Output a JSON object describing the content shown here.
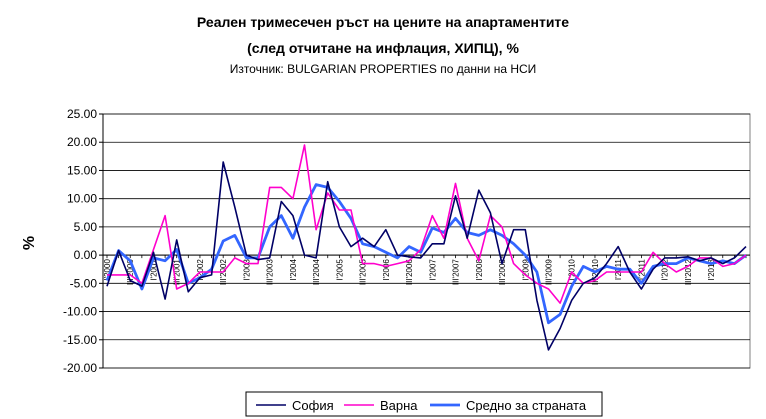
{
  "chart_data": {
    "type": "line",
    "title": "Реален тримесечен ръст на цените на апартаментите",
    "subtitle": "(след отчитане на инфлация, ХИПЦ), %",
    "source": "Източник: BULGARIAN PROPERTIES по данни на НСИ",
    "ylabel": "%",
    "ylim": [
      -20,
      25
    ],
    "yticks": [
      "25.00",
      "20.00",
      "15.00",
      "10.00",
      "5.00",
      "0.00",
      "-5.00",
      "-10.00",
      "-15.00",
      "-20.00"
    ],
    "grid": true,
    "legend_position": "bottom",
    "x_tick_labels": [
      "I'2000",
      "III'2000",
      "I'2001",
      "III'2001",
      "I'2002",
      "III'2002",
      "I'2003",
      "III'2003",
      "I'2004",
      "III'2004",
      "I'2005",
      "III'2005",
      "I'2006",
      "III'2006",
      "I'2007",
      "III'2007",
      "I'2008",
      "III'2008",
      "I'2009",
      "III'2009",
      "I'2010",
      "III'2010",
      "I'2011",
      "III'2011",
      "I'2012",
      "III'2012",
      "I'2013"
    ],
    "series": [
      {
        "name": "София",
        "color": "#000066",
        "values": [
          -5.5,
          0.8,
          -4.5,
          -5.5,
          0.5,
          -7.8,
          2.7,
          -6.5,
          -4.0,
          -3.5,
          16.5,
          8.5,
          0.0,
          -0.8,
          -0.5,
          9.5,
          7.0,
          0.0,
          -0.5,
          13.0,
          5.0,
          1.5,
          3.0,
          1.5,
          4.5,
          0.0,
          -0.3,
          -0.5,
          2.0,
          2.0,
          10.5,
          3.0,
          11.5,
          7.5,
          -1.5,
          4.5,
          4.5,
          -8.0,
          -16.8,
          -13.0,
          -8.0,
          -5.0,
          -4.0,
          -1.5,
          1.5,
          -3.0,
          -6.0,
          -2.5,
          -0.5,
          -0.5,
          -0.3,
          -1.0,
          -0.5,
          -1.5,
          -0.5,
          1.5
        ]
      },
      {
        "name": "Варна",
        "color": "#ff00cc",
        "values": [
          -3.5,
          -3.5,
          -3.5,
          -5.0,
          1.0,
          7.0,
          -6.0,
          -5.0,
          -3.0,
          -3.0,
          -3.0,
          -0.5,
          -1.5,
          -1.5,
          12.0,
          12.0,
          10.0,
          19.5,
          4.5,
          11.0,
          8.0,
          8.0,
          -1.5,
          -1.5,
          -2.0,
          -1.5,
          -1.0,
          1.0,
          7.0,
          3.0,
          12.7,
          3.0,
          -1.0,
          7.0,
          5.0,
          -1.5,
          -3.5,
          -5.0,
          -6.0,
          -8.5,
          -3.0,
          -5.0,
          -4.5,
          -3.0,
          -3.0,
          -3.0,
          -3.0,
          0.5,
          -1.5,
          -3.0,
          -2.0,
          -0.5,
          -0.5,
          -2.0,
          -1.5,
          0.0
        ]
      },
      {
        "name": "Средно за страната",
        "color": "#3366ff",
        "values": [
          -4.5,
          0.8,
          -1.0,
          -6.0,
          -0.5,
          -1.0,
          1.0,
          -5.0,
          -4.0,
          -2.5,
          2.5,
          3.5,
          -0.5,
          -0.5,
          5.0,
          7.0,
          3.0,
          8.5,
          12.5,
          12.0,
          9.5,
          6.5,
          2.0,
          1.5,
          0.5,
          -0.5,
          1.5,
          0.5,
          4.8,
          4.0,
          6.5,
          4.0,
          3.5,
          4.5,
          3.5,
          2.0,
          0.0,
          -3.0,
          -12.0,
          -10.5,
          -5.5,
          -2.0,
          -3.0,
          -2.0,
          -2.5,
          -2.5,
          -5.0,
          -2.0,
          -1.5,
          -1.5,
          -0.5,
          -1.0,
          -1.5,
          -1.0,
          -1.5,
          0.0
        ]
      }
    ]
  }
}
